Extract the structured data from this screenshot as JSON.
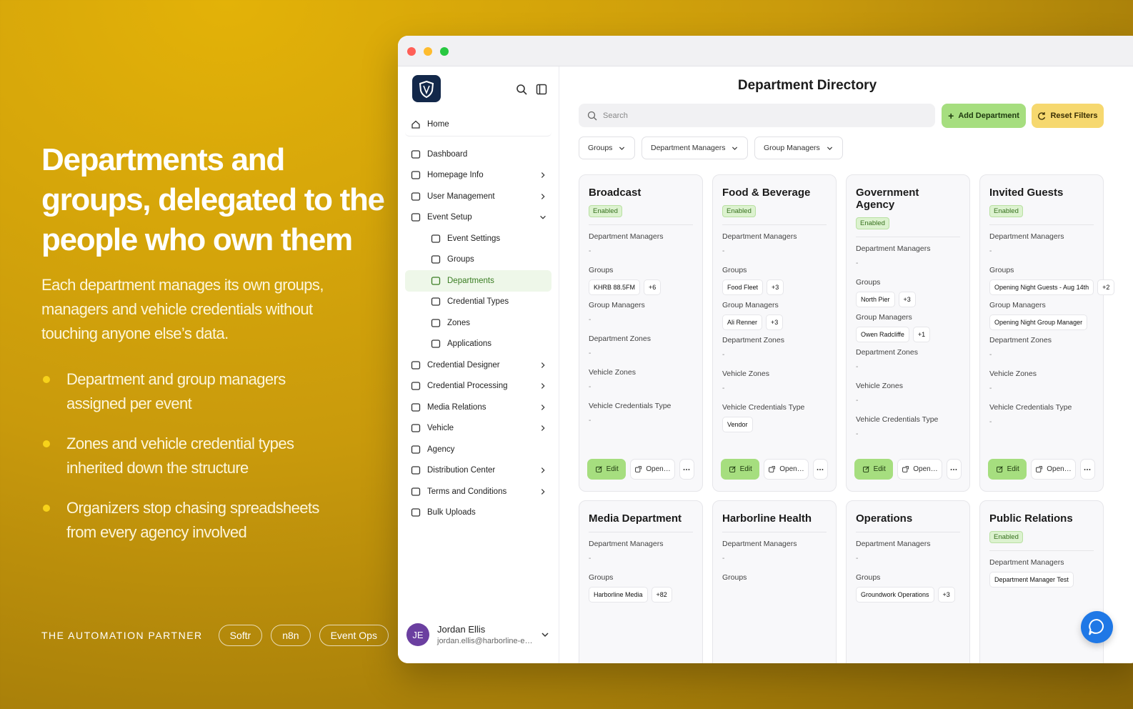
{
  "hero": {
    "title": "Departments and groups, delegated to the people who own them",
    "description": "Each department manages its own groups, managers and vehicle credentials without touching anyone else’s data.",
    "bullets": [
      "Department and group managers assigned per event",
      "Zones and vehicle credential types inherited down the structure",
      "Organizers stop chasing spreadsheets from every agency involved"
    ],
    "footer": {
      "label": "THE AUTOMATION PARTNER",
      "tags": [
        "Softr",
        "n8n",
        "Event Ops"
      ]
    }
  },
  "sidebar": {
    "home": "Home",
    "nav": [
      {
        "label": "Dashboard"
      },
      {
        "label": "Homepage Info",
        "chevron": "right"
      },
      {
        "label": "User Management",
        "chevron": "right"
      },
      {
        "label": "Event Setup",
        "chevron": "down",
        "children": [
          {
            "label": "Event Settings"
          },
          {
            "label": "Groups"
          },
          {
            "label": "Departments",
            "active": true
          },
          {
            "label": "Credential Types"
          },
          {
            "label": "Zones"
          },
          {
            "label": "Applications"
          }
        ]
      },
      {
        "label": "Credential Designer",
        "chevron": "right"
      },
      {
        "label": "Credential Processing",
        "chevron": "right"
      },
      {
        "label": "Media Relations",
        "chevron": "right"
      },
      {
        "label": "Vehicle",
        "chevron": "right"
      },
      {
        "label": "Agency"
      },
      {
        "label": "Distribution Center",
        "chevron": "right"
      },
      {
        "label": "Terms and Conditions",
        "chevron": "right"
      },
      {
        "label": "Bulk Uploads"
      }
    ],
    "user": {
      "initials": "JE",
      "name": "Jordan Ellis",
      "email": "jordan.ellis@harborline-e…"
    }
  },
  "main": {
    "title": "Department Directory",
    "search": "Search",
    "buttons": [
      "Add Department",
      "Reset Filters"
    ],
    "filters": [
      "Groups",
      "Department Managers",
      "Group Managers"
    ],
    "cards": [
      {
        "name": "Broadcast",
        "status": "Enabled",
        "fields": [
          {
            "label": "Department Managers",
            "value": "-"
          },
          {
            "label": "Groups",
            "chips": [
              "KHRB 88.5FM",
              "+6"
            ]
          },
          {
            "label": "Group Managers",
            "value": "-"
          },
          {
            "label": "Department Zones",
            "value": "-"
          },
          {
            "label": "Vehicle Zones",
            "value": "-"
          },
          {
            "label": "Vehicle Credentials Type",
            "value": "-"
          }
        ],
        "actions": [
          "Edit",
          "Open…"
        ]
      },
      {
        "name": "Food & Beverage",
        "status": "Enabled",
        "fields": [
          {
            "label": "Department Managers",
            "value": "-"
          },
          {
            "label": "Groups",
            "chips": [
              "Food Fleet",
              "+3"
            ]
          },
          {
            "label": "Group Managers",
            "chips": [
              "Ali Renner",
              "+3"
            ]
          },
          {
            "label": "Department Zones",
            "value": "-"
          },
          {
            "label": "Vehicle Zones",
            "value": "-"
          },
          {
            "label": "Vehicle Credentials Type",
            "chips": [
              "Vendor"
            ]
          }
        ],
        "actions": [
          "Edit",
          "Open…"
        ]
      },
      {
        "name": "Government Agency",
        "status": "Enabled",
        "fields": [
          {
            "label": "Department Managers",
            "value": "-"
          },
          {
            "label": "Groups",
            "chips": [
              "North Pier",
              "+3"
            ]
          },
          {
            "label": "Group Managers",
            "chips": [
              "Owen Radcliffe",
              "+1"
            ]
          },
          {
            "label": "Department Zones",
            "value": "-"
          },
          {
            "label": "Vehicle Zones",
            "value": "-"
          },
          {
            "label": "Vehicle Credentials Type",
            "value": "-"
          }
        ],
        "actions": [
          "Edit",
          "Open…"
        ]
      },
      {
        "name": "Invited Guests",
        "status": "Enabled",
        "fields": [
          {
            "label": "Department Managers",
            "value": "-"
          },
          {
            "label": "Groups",
            "chips": [
              "Opening Night Guests - Aug 14th",
              "+2"
            ]
          },
          {
            "label": "Group Managers",
            "chips": [
              "Opening Night Group Manager"
            ]
          },
          {
            "label": "Department Zones",
            "value": "-"
          },
          {
            "label": "Vehicle Zones",
            "value": "-"
          },
          {
            "label": "Vehicle Credentials Type",
            "value": "-"
          }
        ],
        "actions": [
          "Edit",
          "Open…"
        ]
      },
      {
        "name": "Media Department",
        "fields": [
          {
            "label": "Department Managers",
            "value": "-"
          },
          {
            "label": "Groups",
            "chips": [
              "Harborline Media",
              "+82"
            ]
          }
        ]
      },
      {
        "name": "Harborline Health",
        "fields": [
          {
            "label": "Department Managers",
            "value": "-"
          },
          {
            "label": "Groups"
          }
        ]
      },
      {
        "name": "Operations",
        "fields": [
          {
            "label": "Department Managers",
            "value": "-"
          },
          {
            "label": "Groups",
            "chips": [
              "Groundwork Operations",
              "+3"
            ]
          }
        ]
      },
      {
        "name": "Public Relations",
        "status": "Enabled",
        "fields": [
          {
            "label": "Department Managers",
            "chips": [
              "Department Manager Test"
            ]
          }
        ]
      }
    ]
  }
}
